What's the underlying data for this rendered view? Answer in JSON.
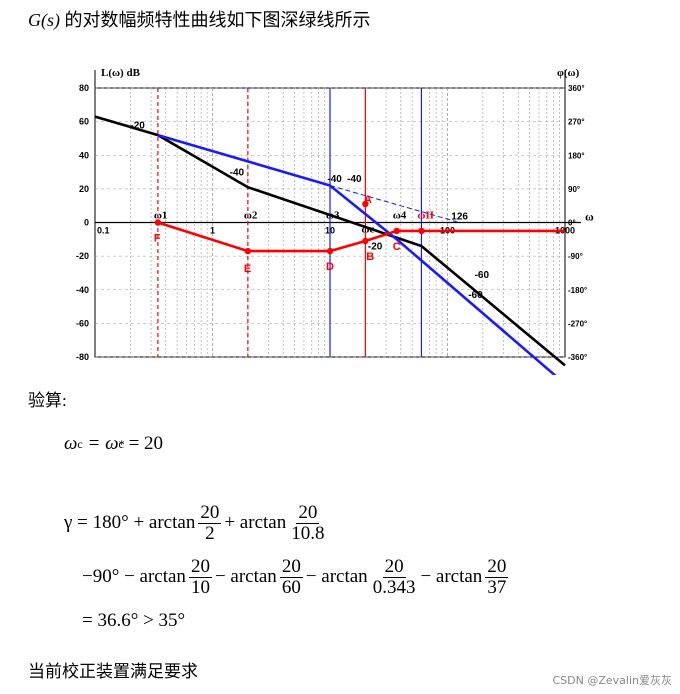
{
  "heading": {
    "fn": "G(s)",
    "text": "的对数幅频特性曲线如下图深绿线所示"
  },
  "chart": {
    "ylabel_left": "L(ω)  dB",
    "ylabel_right": "φ(ω)",
    "x_axis_label": "ω",
    "left_ticks": [
      "80",
      "60",
      "40",
      "20",
      "0",
      "-20",
      "-40",
      "-60",
      "-80"
    ],
    "right_ticks": [
      "360°",
      "270°",
      "180°",
      "90°",
      "0°",
      "-90°",
      "-180°",
      "-270°",
      "-360°"
    ],
    "x_ticks": [
      "0.1",
      "1",
      "10",
      "100",
      "1000"
    ],
    "colors": {
      "black": "#000000",
      "blue": "#1a1aff",
      "red": "#ff0000",
      "grid": "#9a9a9a"
    },
    "freq_labels": [
      "ω1",
      "ω2",
      "ω3",
      "ωc",
      "ω4",
      "ωII"
    ],
    "slope_labels": [
      "-20",
      "-40",
      "-40",
      "-40",
      "-20",
      "-60",
      "-60"
    ],
    "point_labels": [
      "A",
      "B",
      "C",
      "D",
      "E",
      "F"
    ],
    "extra_label": "126"
  },
  "chart_data": {
    "type": "line",
    "xscale": "log",
    "xlim": [
      0.1,
      1000
    ],
    "ylim": [
      -80,
      80
    ],
    "series": [
      {
        "color": "black",
        "x": [
          0.1,
          0.343,
          2,
          60,
          1000
        ],
        "y": [
          63,
          52,
          21,
          -14,
          -85
        ]
      },
      {
        "color": "blue",
        "x": [
          0.343,
          10,
          37,
          1000
        ],
        "y": [
          52,
          22,
          -10,
          -96
        ]
      },
      {
        "color": "red",
        "x": [
          0.343,
          2,
          10,
          20,
          37,
          1000
        ],
        "y": [
          0,
          -17,
          -17,
          -11,
          -5,
          -5
        ]
      }
    ]
  },
  "verify": {
    "label": "验算:",
    "wc_line": {
      "lhs": "ω",
      "sub": "c",
      "mid": "= ω",
      "sup": "*",
      "rhs": "= 20"
    },
    "gamma": {
      "start": "γ = 180° + arctan",
      "f1": {
        "num": "20",
        "den": "2"
      },
      "plus": "+ arctan",
      "f2": {
        "num": "20",
        "den": "10.8"
      },
      "line2_start": "−90° − arctan",
      "f3": {
        "num": "20",
        "den": "10"
      },
      "minus": "− arctan",
      "f4": {
        "num": "20",
        "den": "60"
      },
      "f5": {
        "num": "20",
        "den": "0.343"
      },
      "f6": {
        "num": "20",
        "den": "37"
      },
      "result": "= 36.6° > 35°"
    },
    "conclusion": "当前校正装置满足要求"
  },
  "watermark": "CSDN @Zevalin爱灰灰"
}
